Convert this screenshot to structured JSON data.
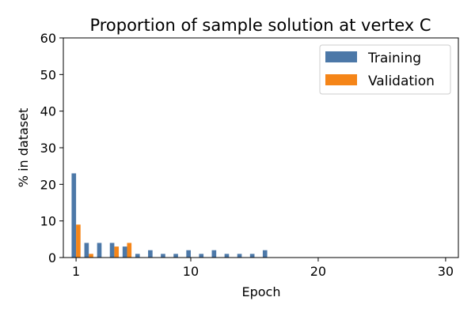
{
  "chart_data": {
    "type": "bar",
    "title": "Proportion of sample solution at vertex C",
    "xlabel": "Epoch",
    "ylabel": "% in dataset",
    "xlim": [
      0,
      31
    ],
    "ylim": [
      0,
      60
    ],
    "xticks": [
      1,
      10,
      20,
      30
    ],
    "yticks": [
      0,
      10,
      20,
      30,
      40,
      50,
      60
    ],
    "grid": false,
    "legend_position": "top-right",
    "series": [
      {
        "name": "Training",
        "color": "#4c78a8",
        "x": [
          1,
          2,
          3,
          4,
          5,
          6,
          7,
          8,
          9,
          10,
          11,
          12,
          13,
          14,
          15,
          16
        ],
        "values": [
          23,
          4,
          4,
          4,
          3,
          1,
          2,
          1,
          1,
          2,
          1,
          2,
          1,
          1,
          1,
          2
        ]
      },
      {
        "name": "Validation",
        "color": "#f58518",
        "x": [
          1,
          2,
          3,
          4,
          5
        ],
        "values": [
          9,
          1,
          0,
          3,
          4
        ]
      }
    ]
  }
}
